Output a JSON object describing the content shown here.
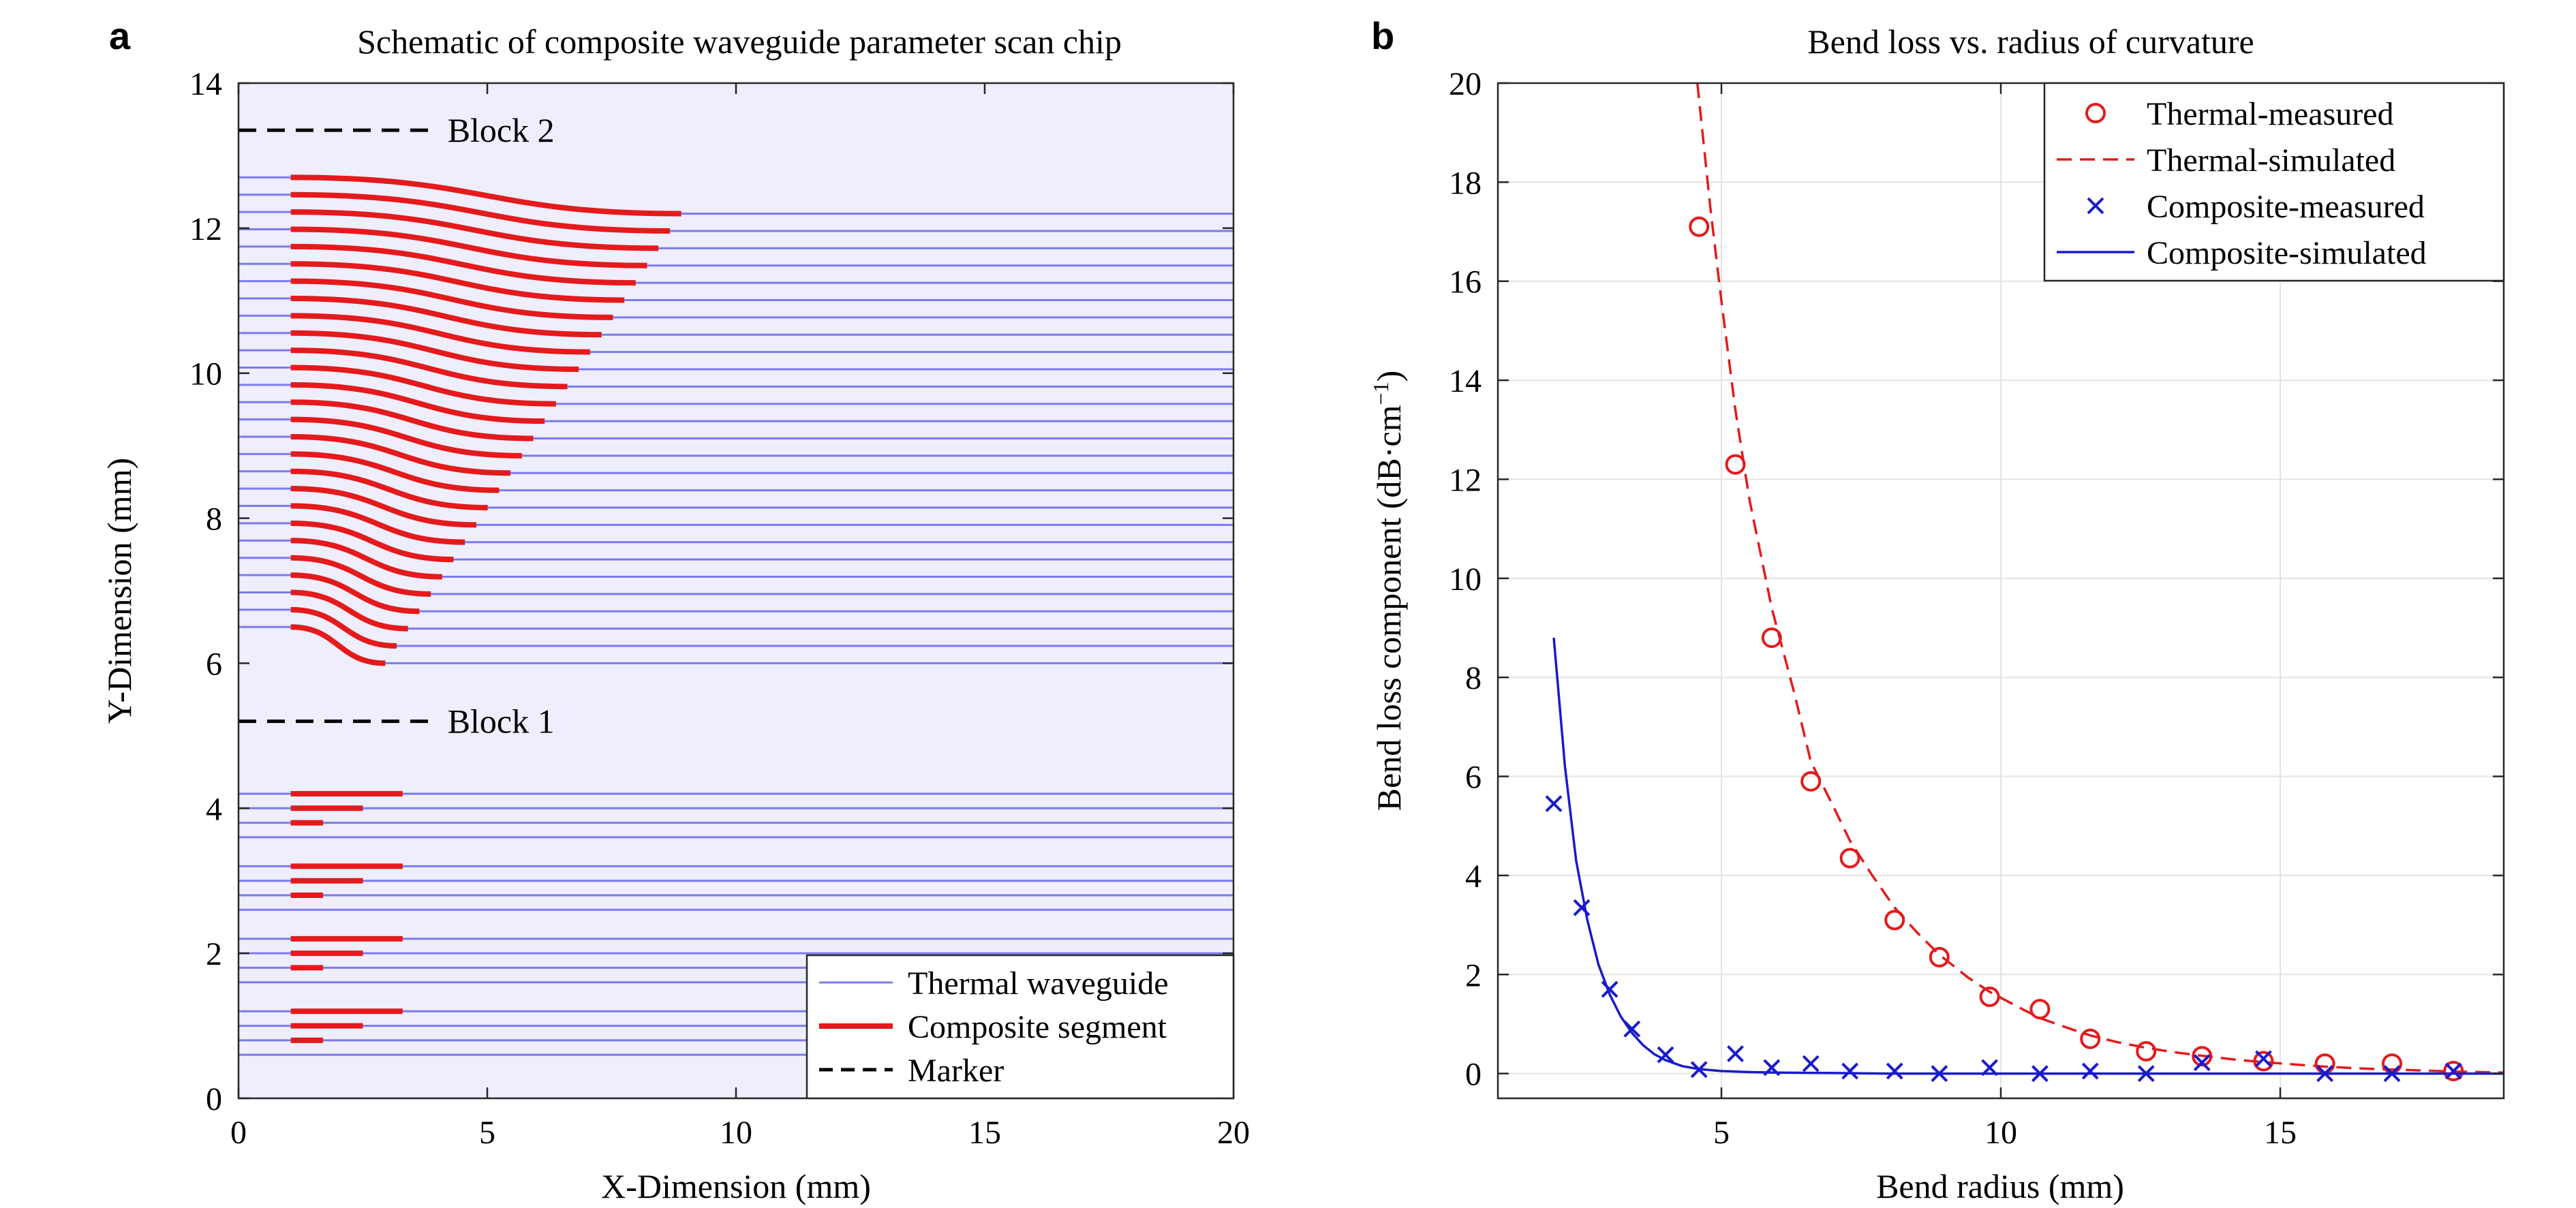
{
  "chart_data": [
    {
      "panel_label": "a",
      "type": "line",
      "title": "Schematic of composite waveguide parameter scan chip",
      "xlabel": "X-Dimension (mm)",
      "ylabel": "Y-Dimension (mm)",
      "xlim": [
        0,
        20
      ],
      "ylim": [
        0,
        14
      ],
      "xticks": [
        0,
        5,
        10,
        15,
        20
      ],
      "yticks": [
        0,
        2,
        4,
        6,
        8,
        10,
        12,
        14
      ],
      "background_color": "#eeeefc",
      "legend_location": "bottom-right",
      "legend": [
        {
          "name": "Thermal waveguide",
          "color": "#7b7bef",
          "style": "solid-thin"
        },
        {
          "name": "Composite segment",
          "color": "#e41a1c",
          "style": "solid-thick"
        },
        {
          "name": "Marker",
          "color": "#000000",
          "style": "dashed"
        }
      ],
      "markers": [
        {
          "label": "Block 2",
          "y": 13.35,
          "x": [
            0,
            3.9
          ]
        },
        {
          "label": "Block 1",
          "y": 5.2,
          "x": [
            0,
            3.9
          ]
        }
      ],
      "block2": {
        "count": 27,
        "input_y_start": 6.5,
        "input_y_end": 12.7,
        "output_y_start": 6.0,
        "output_y_end": 12.2,
        "start_x": 1.05,
        "end_x_start": 2.95,
        "end_x_end": 8.9,
        "thermal_left_x": [
          0,
          1.05
        ],
        "thermal_right_to_x": 20
      },
      "block1": {
        "groups": [
          {
            "thermal_y": [
              4.2,
              4.0,
              3.8,
              3.6
            ],
            "composite": [
              {
                "y": 4.2,
                "x": [
                  1.05,
                  3.3
                ]
              },
              {
                "y": 4.0,
                "x": [
                  1.05,
                  2.5
                ]
              },
              {
                "y": 3.8,
                "x": [
                  1.05,
                  1.7
                ]
              }
            ]
          },
          {
            "thermal_y": [
              3.2,
              3.0,
              2.8,
              2.6
            ],
            "composite": [
              {
                "y": 3.2,
                "x": [
                  1.05,
                  3.3
                ]
              },
              {
                "y": 3.0,
                "x": [
                  1.05,
                  2.5
                ]
              },
              {
                "y": 2.8,
                "x": [
                  1.05,
                  1.7
                ]
              }
            ]
          },
          {
            "thermal_y": [
              2.2,
              2.0,
              1.8,
              1.6
            ],
            "composite": [
              {
                "y": 2.2,
                "x": [
                  1.05,
                  3.3
                ]
              },
              {
                "y": 2.0,
                "x": [
                  1.05,
                  2.5
                ]
              },
              {
                "y": 1.8,
                "x": [
                  1.05,
                  1.7
                ]
              }
            ]
          },
          {
            "thermal_y": [
              1.2,
              1.0,
              0.8,
              0.6
            ],
            "composite": [
              {
                "y": 1.2,
                "x": [
                  1.05,
                  3.3
                ]
              },
              {
                "y": 1.0,
                "x": [
                  1.05,
                  2.5
                ]
              },
              {
                "y": 0.8,
                "x": [
                  1.05,
                  1.7
                ]
              }
            ]
          }
        ]
      }
    },
    {
      "panel_label": "b",
      "type": "scatter",
      "title": "Bend loss vs. radius of curvature",
      "xlabel": "Bend radius (mm)",
      "ylabel_main": "Bend loss component (dB·cm",
      "ylabel_sup": "−1",
      "ylabel_close": ")",
      "xlim": [
        1,
        19
      ],
      "ylim": [
        -0.5,
        20
      ],
      "xticks": [
        5,
        10,
        15
      ],
      "yticks": [
        0,
        2,
        4,
        6,
        8,
        10,
        12,
        14,
        16,
        18,
        20
      ],
      "grid": true,
      "legend_location": "top-right",
      "series": [
        {
          "name": "Thermal-measured",
          "kind": "marker-circle",
          "color": "#e41a1c",
          "x": [
            4.6,
            5.25,
            5.9,
            6.6,
            7.3,
            8.1,
            8.9,
            9.8,
            10.7,
            11.6,
            12.6,
            13.6,
            14.7,
            15.8,
            17.0,
            18.1
          ],
          "y": [
            17.1,
            12.3,
            8.8,
            5.9,
            4.35,
            3.1,
            2.35,
            1.55,
            1.3,
            0.7,
            0.45,
            0.35,
            0.25,
            0.2,
            0.2,
            0.05
          ]
        },
        {
          "name": "Thermal-simulated",
          "kind": "line-dashed",
          "color": "#e41a1c",
          "x": [
            4.57,
            4.8,
            5.0,
            5.25,
            5.5,
            5.9,
            6.3,
            6.6,
            7.0,
            7.3,
            7.7,
            8.1,
            8.5,
            8.9,
            9.4,
            9.8,
            10.3,
            10.7,
            11.2,
            11.6,
            12.1,
            12.6,
            13.1,
            13.6,
            14.2,
            14.7,
            15.3,
            15.8,
            16.5,
            17.0,
            17.6,
            18.1,
            19.0
          ],
          "y": [
            20.0,
            17.5,
            15.6,
            13.4,
            11.6,
            9.4,
            7.7,
            6.3,
            5.4,
            4.7,
            4.0,
            3.35,
            2.85,
            2.4,
            1.95,
            1.65,
            1.35,
            1.12,
            0.92,
            0.77,
            0.63,
            0.52,
            0.43,
            0.36,
            0.28,
            0.23,
            0.18,
            0.14,
            0.1,
            0.08,
            0.06,
            0.04,
            0.02
          ]
        },
        {
          "name": "Composite-measured",
          "kind": "marker-x",
          "color": "#1a1acc",
          "x": [
            2.0,
            2.5,
            3.0,
            3.4,
            4.0,
            4.6,
            5.25,
            5.9,
            6.6,
            7.3,
            8.1,
            8.9,
            9.8,
            10.7,
            11.6,
            12.6,
            13.6,
            14.7,
            15.8,
            17.0,
            18.1
          ],
          "y": [
            5.45,
            3.35,
            1.7,
            0.9,
            0.38,
            0.08,
            0.4,
            0.12,
            0.2,
            0.05,
            0.05,
            0.0,
            0.12,
            0.0,
            0.05,
            0.0,
            0.22,
            0.3,
            0.0,
            0.0,
            0.05
          ]
        },
        {
          "name": "Composite-simulated",
          "kind": "line-solid",
          "color": "#1a1acc",
          "x": [
            2.0,
            2.2,
            2.4,
            2.6,
            2.8,
            3.0,
            3.2,
            3.4,
            3.6,
            3.8,
            4.0,
            4.3,
            4.6,
            5.0,
            5.5,
            6.0,
            7.0,
            8.0,
            10.0,
            12.0,
            15.0,
            19.0
          ],
          "y": [
            8.8,
            6.2,
            4.3,
            3.1,
            2.2,
            1.6,
            1.15,
            0.82,
            0.57,
            0.39,
            0.27,
            0.15,
            0.09,
            0.05,
            0.03,
            0.02,
            0.01,
            0.0,
            0.0,
            0.0,
            0.0,
            0.0
          ]
        }
      ]
    }
  ]
}
